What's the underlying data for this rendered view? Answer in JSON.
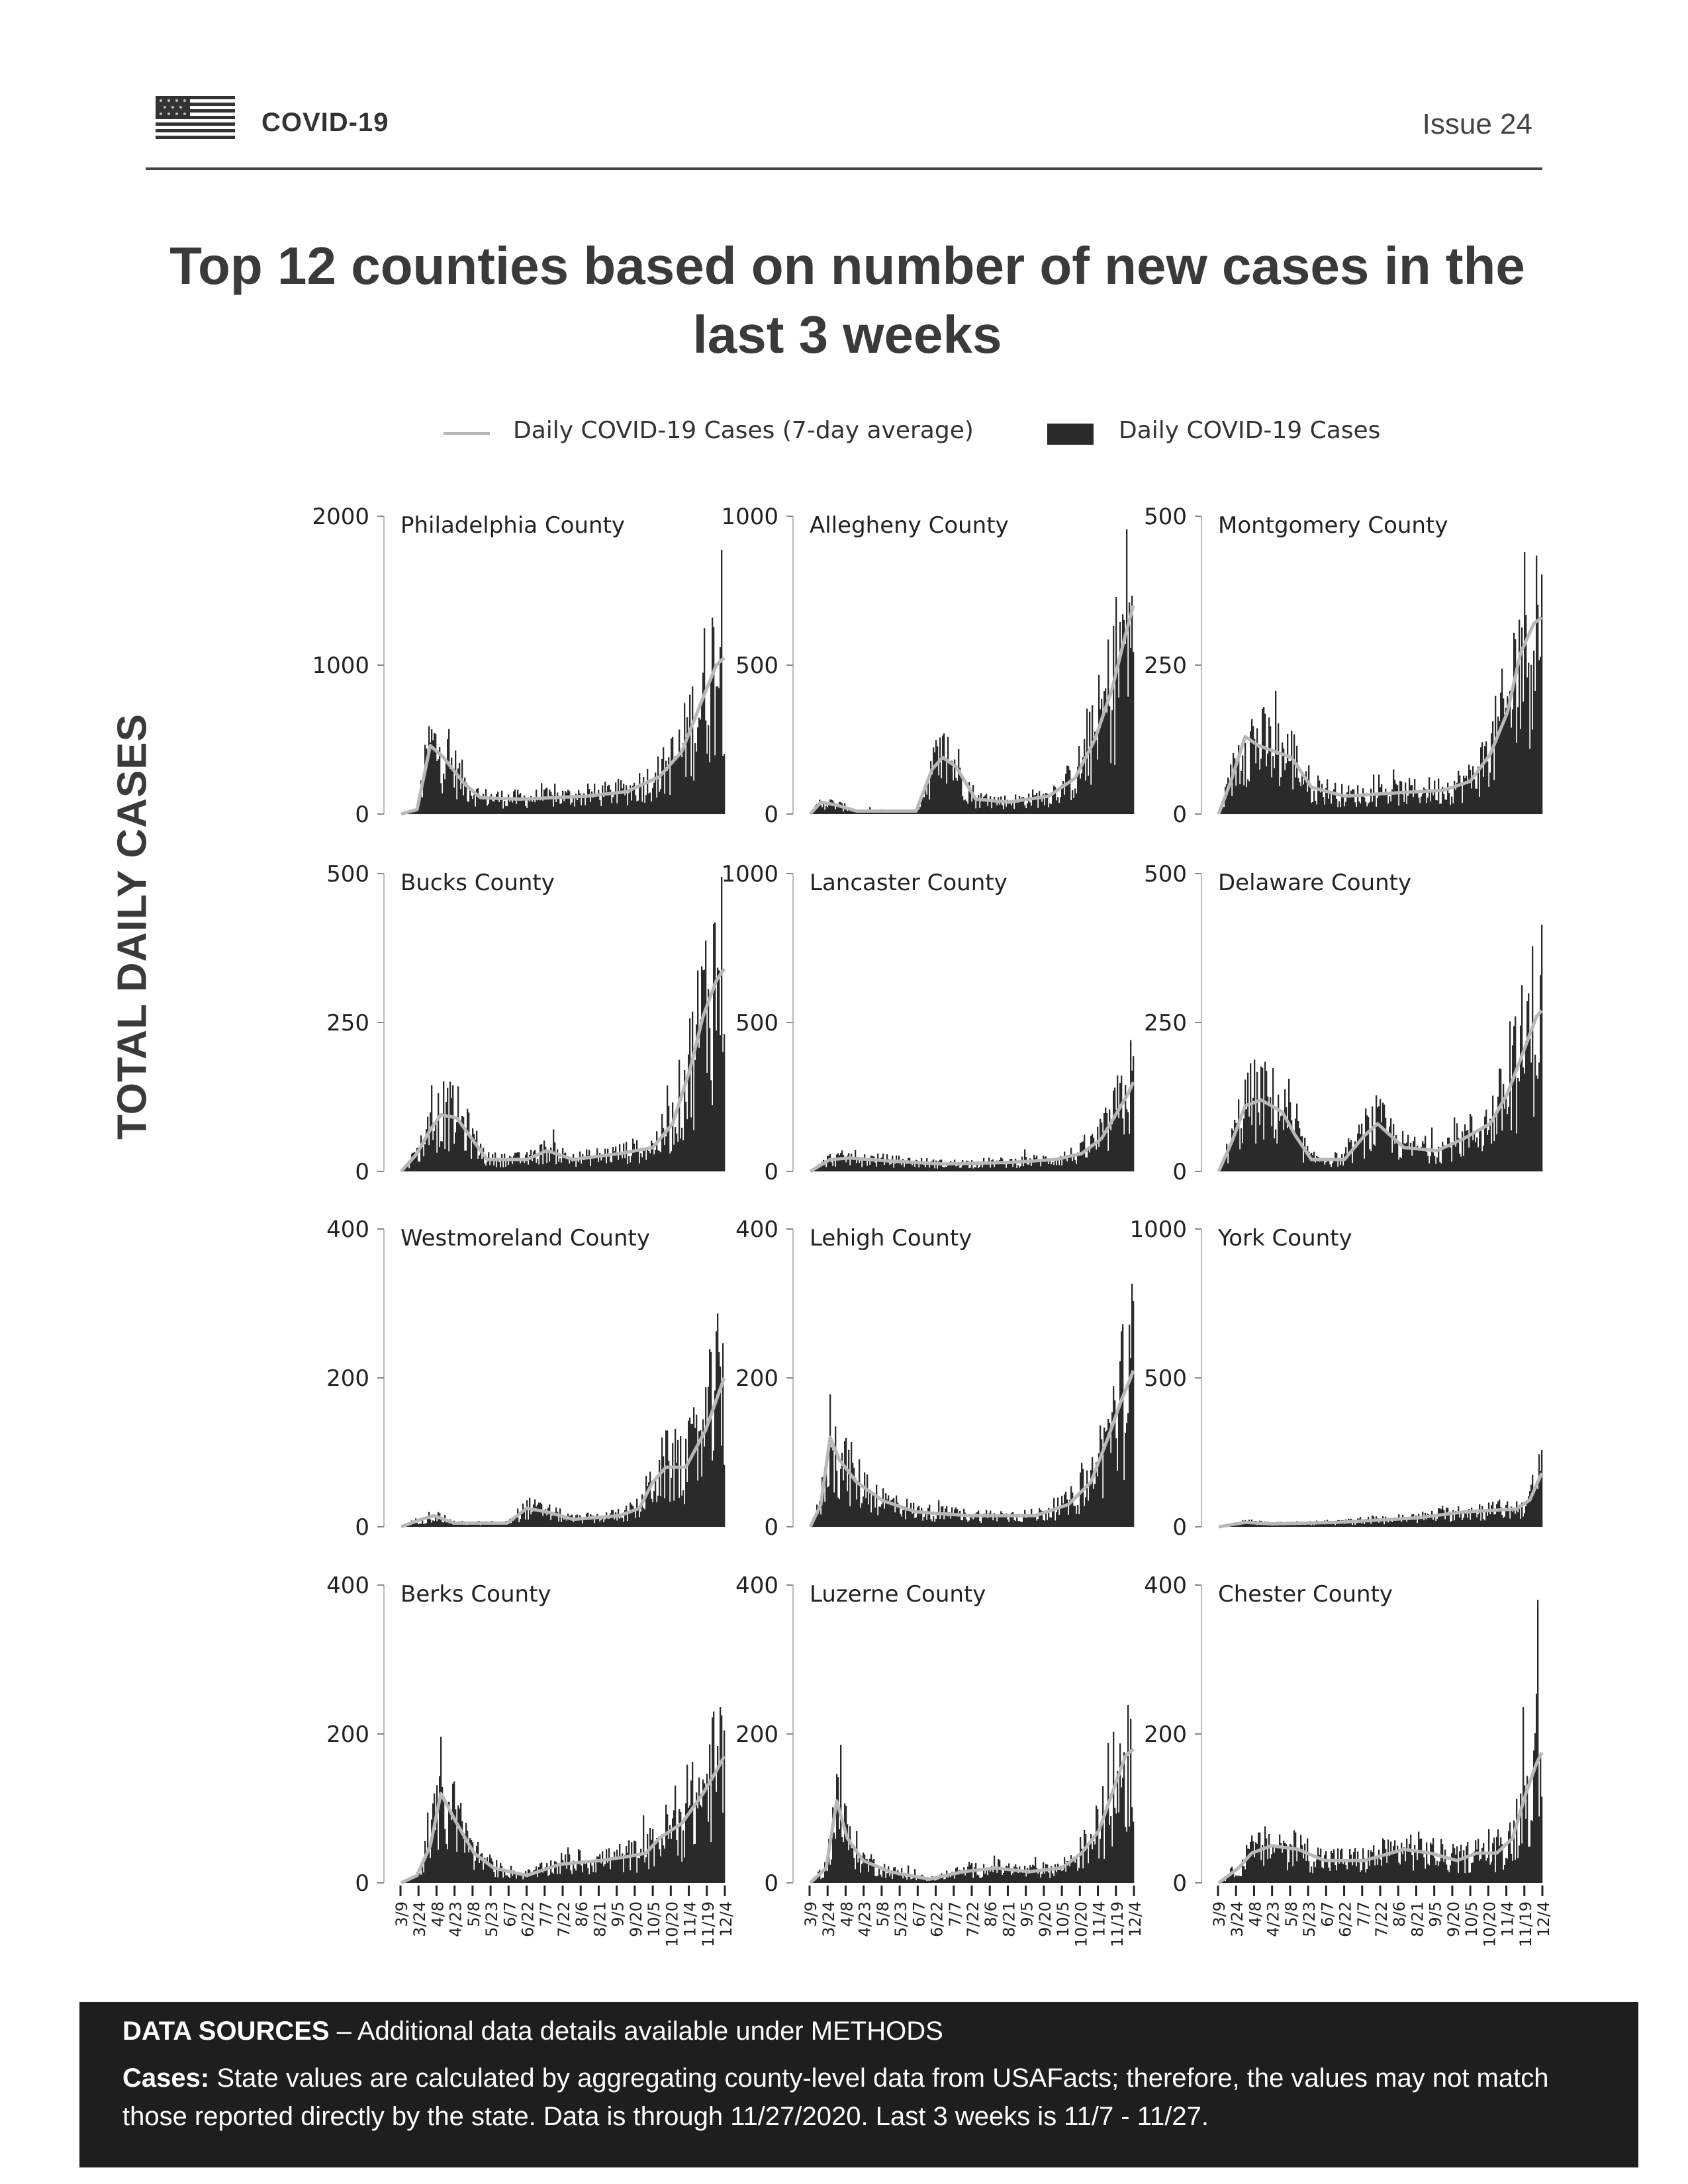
{
  "header": {
    "title": "COVID-19",
    "issue": "Issue 24"
  },
  "title": "Top 12 counties based on number of new cases in the last 3 weeks",
  "legend": {
    "line_label": "Daily COVID-19 Cases (7-day average)",
    "bar_label": "Daily COVID-19 Cases"
  },
  "ylabel": "TOTAL DAILY CASES",
  "footer": {
    "sources_label": "DATA SOURCES",
    "sources_text": " – Additional data details available under METHODS",
    "cases_label": "Cases:",
    "cases_text": " State values are calculated by aggregating county-level data from USAFacts; therefore, the values may not match those reported directly by the state. Data is through 11/27/2020. Last 3 weeks is 11/7 - 11/27."
  },
  "colors": {
    "bar": "#2a2a2a",
    "avg_line": "#b8b8b8"
  },
  "chart_data": {
    "type": "bar",
    "x_ticks": [
      "3/9",
      "3/24",
      "4/8",
      "4/23",
      "5/8",
      "5/23",
      "6/7",
      "6/22",
      "7/7",
      "7/22",
      "8/6",
      "8/21",
      "9/5",
      "9/20",
      "10/5",
      "10/20",
      "11/4",
      "11/19",
      "12/4"
    ],
    "panels": [
      {
        "name": "Philadelphia County",
        "ymax": 2000,
        "yticks": [
          0,
          1000,
          2000
        ],
        "profile": [
          [
            0,
            0
          ],
          [
            12,
            30
          ],
          [
            22,
            460
          ],
          [
            32,
            380
          ],
          [
            48,
            200
          ],
          [
            60,
            110
          ],
          [
            90,
            100
          ],
          [
            140,
            120
          ],
          [
            170,
            150
          ],
          [
            195,
            250
          ],
          [
            212,
            420
          ],
          [
            228,
            780
          ],
          [
            238,
            1000
          ],
          [
            244,
            1050
          ]
        ]
      },
      {
        "name": "Allegheny County",
        "ymax": 1000,
        "yticks": [
          0,
          500,
          1000
        ],
        "profile": [
          [
            0,
            0
          ],
          [
            8,
            40
          ],
          [
            20,
            30
          ],
          [
            35,
            10
          ],
          [
            80,
            10
          ],
          [
            92,
            150
          ],
          [
            100,
            190
          ],
          [
            110,
            160
          ],
          [
            125,
            50
          ],
          [
            150,
            40
          ],
          [
            180,
            60
          ],
          [
            200,
            120
          ],
          [
            215,
            250
          ],
          [
            228,
            420
          ],
          [
            238,
            600
          ],
          [
            244,
            700
          ]
        ]
      },
      {
        "name": "Montgomery County",
        "ymax": 500,
        "yticks": [
          0,
          250,
          500
        ],
        "profile": [
          [
            0,
            0
          ],
          [
            10,
            60
          ],
          [
            20,
            130
          ],
          [
            30,
            115
          ],
          [
            55,
            95
          ],
          [
            70,
            45
          ],
          [
            95,
            30
          ],
          [
            130,
            35
          ],
          [
            170,
            40
          ],
          [
            190,
            55
          ],
          [
            205,
            100
          ],
          [
            218,
            170
          ],
          [
            228,
            270
          ],
          [
            238,
            320
          ],
          [
            244,
            330
          ]
        ]
      },
      {
        "name": "Bucks County",
        "ymax": 500,
        "yticks": [
          0,
          250,
          500
        ],
        "profile": [
          [
            0,
            0
          ],
          [
            12,
            30
          ],
          [
            22,
            70
          ],
          [
            30,
            95
          ],
          [
            42,
            90
          ],
          [
            55,
            50
          ],
          [
            65,
            20
          ],
          [
            95,
            20
          ],
          [
            110,
            35
          ],
          [
            130,
            20
          ],
          [
            165,
            30
          ],
          [
            190,
            40
          ],
          [
            205,
            80
          ],
          [
            218,
            170
          ],
          [
            228,
            260
          ],
          [
            238,
            320
          ],
          [
            244,
            340
          ]
        ]
      },
      {
        "name": "Lancaster County",
        "ymax": 1000,
        "yticks": [
          0,
          500,
          1000
        ],
        "profile": [
          [
            0,
            0
          ],
          [
            15,
            40
          ],
          [
            30,
            45
          ],
          [
            60,
            35
          ],
          [
            100,
            25
          ],
          [
            150,
            30
          ],
          [
            185,
            40
          ],
          [
            205,
            60
          ],
          [
            220,
            110
          ],
          [
            232,
            200
          ],
          [
            240,
            260
          ],
          [
            244,
            300
          ]
        ]
      },
      {
        "name": "Delaware County",
        "ymax": 500,
        "yticks": [
          0,
          250,
          500
        ],
        "profile": [
          [
            0,
            0
          ],
          [
            10,
            50
          ],
          [
            20,
            110
          ],
          [
            32,
            120
          ],
          [
            48,
            100
          ],
          [
            58,
            60
          ],
          [
            70,
            20
          ],
          [
            95,
            20
          ],
          [
            110,
            60
          ],
          [
            120,
            80
          ],
          [
            140,
            40
          ],
          [
            165,
            35
          ],
          [
            185,
            55
          ],
          [
            205,
            80
          ],
          [
            218,
            130
          ],
          [
            230,
            200
          ],
          [
            240,
            260
          ],
          [
            244,
            270
          ]
        ]
      },
      {
        "name": "Westmoreland County",
        "ymax": 400,
        "yticks": [
          0,
          200,
          400
        ],
        "profile": [
          [
            0,
            0
          ],
          [
            15,
            10
          ],
          [
            25,
            15
          ],
          [
            40,
            5
          ],
          [
            80,
            5
          ],
          [
            95,
            25
          ],
          [
            110,
            20
          ],
          [
            130,
            10
          ],
          [
            165,
            15
          ],
          [
            180,
            25
          ],
          [
            190,
            60
          ],
          [
            200,
            80
          ],
          [
            215,
            80
          ],
          [
            230,
            130
          ],
          [
            240,
            180
          ],
          [
            244,
            200
          ]
        ]
      },
      {
        "name": "Lehigh County",
        "ymax": 400,
        "yticks": [
          0,
          200,
          400
        ],
        "profile": [
          [
            0,
            0
          ],
          [
            8,
            30
          ],
          [
            15,
            120
          ],
          [
            22,
            90
          ],
          [
            35,
            60
          ],
          [
            55,
            35
          ],
          [
            80,
            20
          ],
          [
            120,
            15
          ],
          [
            170,
            15
          ],
          [
            195,
            30
          ],
          [
            212,
            60
          ],
          [
            225,
            120
          ],
          [
            235,
            170
          ],
          [
            242,
            200
          ],
          [
            244,
            210
          ]
        ]
      },
      {
        "name": "York County",
        "ymax": 1000,
        "yticks": [
          0,
          500,
          1000
        ],
        "profile": [
          [
            0,
            0
          ],
          [
            20,
            15
          ],
          [
            40,
            10
          ],
          [
            90,
            15
          ],
          [
            150,
            30
          ],
          [
            185,
            50
          ],
          [
            205,
            55
          ],
          [
            225,
            60
          ],
          [
            235,
            90
          ],
          [
            241,
            150
          ],
          [
            244,
            180
          ]
        ]
      },
      {
        "name": "Berks County",
        "ymax": 400,
        "yticks": [
          0,
          200,
          400
        ],
        "profile": [
          [
            0,
            0
          ],
          [
            12,
            10
          ],
          [
            22,
            50
          ],
          [
            30,
            120
          ],
          [
            42,
            80
          ],
          [
            55,
            40
          ],
          [
            70,
            20
          ],
          [
            95,
            10
          ],
          [
            120,
            25
          ],
          [
            150,
            30
          ],
          [
            170,
            35
          ],
          [
            185,
            40
          ],
          [
            195,
            60
          ],
          [
            212,
            80
          ],
          [
            228,
            120
          ],
          [
            238,
            150
          ],
          [
            244,
            170
          ]
        ]
      },
      {
        "name": "Luzerne County",
        "ymax": 400,
        "yticks": [
          0,
          200,
          400
        ],
        "profile": [
          [
            0,
            0
          ],
          [
            12,
            20
          ],
          [
            20,
            110
          ],
          [
            28,
            60
          ],
          [
            40,
            30
          ],
          [
            60,
            15
          ],
          [
            90,
            5
          ],
          [
            115,
            15
          ],
          [
            140,
            20
          ],
          [
            165,
            15
          ],
          [
            190,
            20
          ],
          [
            205,
            40
          ],
          [
            218,
            70
          ],
          [
            228,
            120
          ],
          [
            238,
            170
          ],
          [
            244,
            180
          ]
        ]
      },
      {
        "name": "Chester County",
        "ymax": 400,
        "yticks": [
          0,
          200,
          400
        ],
        "profile": [
          [
            0,
            0
          ],
          [
            15,
            20
          ],
          [
            25,
            40
          ],
          [
            40,
            50
          ],
          [
            60,
            45
          ],
          [
            80,
            30
          ],
          [
            110,
            30
          ],
          [
            140,
            45
          ],
          [
            160,
            40
          ],
          [
            180,
            30
          ],
          [
            195,
            40
          ],
          [
            210,
            40
          ],
          [
            222,
            60
          ],
          [
            232,
            120
          ],
          [
            240,
            160
          ],
          [
            244,
            175
          ]
        ]
      }
    ]
  }
}
